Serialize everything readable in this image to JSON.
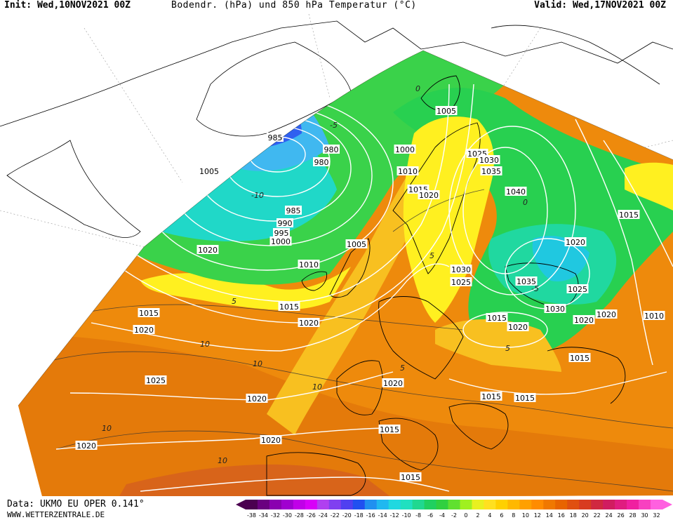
{
  "header": {
    "init": "Init: Wed,10NOV2021 00Z",
    "title": "Bodendr. (hPa) und 850 hPa Temperatur (°C)",
    "valid": "Valid: Wed,17NOV2021 00Z"
  },
  "footer": {
    "data": "Data: UKMO EU OPER 0.141°",
    "site": "WWW.WETTERZENTRALE.DE"
  },
  "legend": {
    "labels": [
      "-38",
      "-34",
      "-32",
      "-30",
      "-28",
      "-26",
      "-24",
      "-22",
      "-20",
      "-18",
      "-16",
      "-14",
      "-12",
      "-10",
      "-8",
      "-6",
      "-4",
      "-2",
      "0",
      "2",
      "4",
      "6",
      "8",
      "10",
      "12",
      "14",
      "16",
      "18",
      "20",
      "22",
      "24",
      "26",
      "28",
      "30",
      "32"
    ],
    "colors": [
      "#4b0050",
      "#6a0080",
      "#8a00b0",
      "#a000d0",
      "#c000e8",
      "#d800f8",
      "#b040f0",
      "#8040f0",
      "#5040f0",
      "#2050f0",
      "#2090f0",
      "#20b8f0",
      "#20d8e0",
      "#20e0c0",
      "#20d890",
      "#20d060",
      "#30d040",
      "#60e030",
      "#a0f020",
      "#e8f020",
      "#ffe020",
      "#ffd000",
      "#ffb800",
      "#ffa000",
      "#ff8c00",
      "#f07800",
      "#e86400",
      "#e05010",
      "#d83c20",
      "#d02840",
      "#d01c60",
      "#e01c80",
      "#f020a0",
      "#f840c0",
      "#ff60e0"
    ]
  },
  "isobar_labels": [
    {
      "v": "1005"
    },
    {
      "v": "985"
    },
    {
      "v": "980"
    },
    {
      "v": "980"
    },
    {
      "v": "1000"
    },
    {
      "v": "1005"
    },
    {
      "v": "1010"
    },
    {
      "v": "1025"
    },
    {
      "v": "1030"
    },
    {
      "v": "1035"
    },
    {
      "v": "1015"
    },
    {
      "v": "1020"
    },
    {
      "v": "1040"
    },
    {
      "v": "985"
    },
    {
      "v": "990"
    },
    {
      "v": "995"
    },
    {
      "v": "1000"
    },
    {
      "v": "1015"
    },
    {
      "v": "1020"
    },
    {
      "v": "1005"
    },
    {
      "v": "1010"
    },
    {
      "v": "1020"
    },
    {
      "v": "1030"
    },
    {
      "v": "1025"
    },
    {
      "v": "1035"
    },
    {
      "v": "1025"
    },
    {
      "v": "1030"
    },
    {
      "v": "1015"
    },
    {
      "v": "1020"
    },
    {
      "v": "1020"
    },
    {
      "v": "1015"
    },
    {
      "v": "1020"
    },
    {
      "v": "1020"
    },
    {
      "v": "1020"
    },
    {
      "v": "1025"
    },
    {
      "v": "1020"
    },
    {
      "v": "1010"
    },
    {
      "v": "1015"
    },
    {
      "v": "1015"
    },
    {
      "v": "1015"
    },
    {
      "v": "1015"
    },
    {
      "v": "1020"
    },
    {
      "v": "1020"
    },
    {
      "v": "1015"
    },
    {
      "v": "1015"
    },
    {
      "v": "1020"
    }
  ],
  "temperature_labels": [
    {
      "v": "-10"
    },
    {
      "v": "-5"
    },
    {
      "v": "0"
    },
    {
      "v": "5"
    },
    {
      "v": "10"
    },
    {
      "v": "5"
    },
    {
      "v": "10"
    },
    {
      "v": "5"
    },
    {
      "v": "0"
    },
    {
      "v": "-5"
    },
    {
      "v": "5"
    },
    {
      "v": "10"
    },
    {
      "v": "10"
    },
    {
      "v": "10"
    }
  ]
}
